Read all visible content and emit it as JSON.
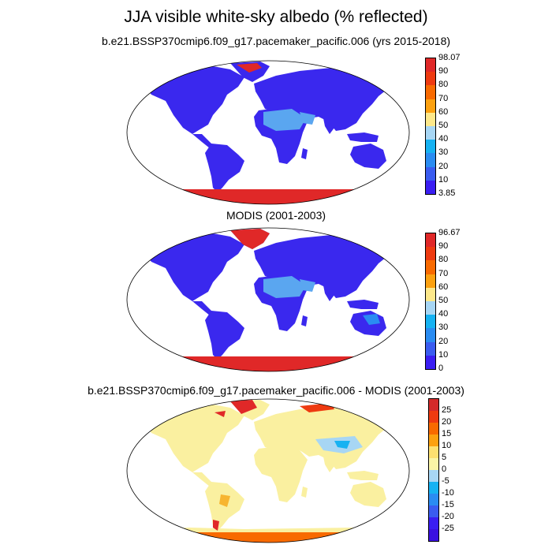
{
  "title": "JJA visible white-sky albedo (% reflected)",
  "panels": [
    {
      "id": "model",
      "title": "b.e21.BSSP370cmip6.f09_g17.pacemaker_pacific.006 (yrs 2015-2018)",
      "colorbar": {
        "labels": [
          "98.07",
          "90",
          "80",
          "70",
          "60",
          "50",
          "40",
          "30",
          "20",
          "10",
          "3.85"
        ],
        "colors": [
          "#e02828",
          "#ee3a10",
          "#f86a00",
          "#fca110",
          "#fde88a",
          "#a7d6f4",
          "#16b2f2",
          "#2a8cf2",
          "#3a5cf0",
          "#3a1ef2"
        ]
      }
    },
    {
      "id": "modis",
      "title": "MODIS (2001-2003)",
      "colorbar": {
        "labels": [
          "96.67",
          "90",
          "80",
          "70",
          "60",
          "50",
          "40",
          "30",
          "20",
          "10",
          "0"
        ],
        "colors": [
          "#e02828",
          "#ee3a10",
          "#f86a00",
          "#fca110",
          "#fde88a",
          "#a7d6f4",
          "#16b2f2",
          "#2a8cf2",
          "#3a5cf0",
          "#3a1ef2"
        ]
      }
    },
    {
      "id": "diff",
      "title": "b.e21.BSSP370cmip6.f09_g17.pacemaker_pacific.006 - MODIS (2001-2003)",
      "colorbar": {
        "labels": [
          "25",
          "20",
          "15",
          "10",
          "5",
          "0",
          "-5",
          "-10",
          "-15",
          "-20",
          "-25"
        ],
        "colors": [
          "#d42a2a",
          "#ee3a10",
          "#f86a00",
          "#fca110",
          "#fde070",
          "#faf5a6",
          "#a7d6f4",
          "#16b2f2",
          "#2a8cf2",
          "#3a5cf0",
          "#3a1ef2",
          "#3a10e0"
        ]
      }
    }
  ],
  "colors": {
    "land_low": "#3a28ee",
    "desert": "#5aa6f0",
    "ice": "#e02828",
    "diff_land": "#faf0a0",
    "diff_orange": "#f7b530",
    "diff_blue": "#a7d6f4",
    "coast": "#000000"
  }
}
